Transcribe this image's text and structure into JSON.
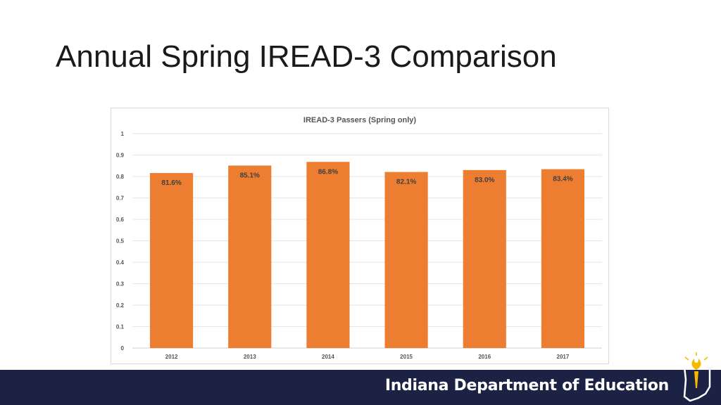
{
  "slide": {
    "title": "Annual Spring IREAD-3 Comparison"
  },
  "footer": {
    "organization": "Indiana Department of Education"
  },
  "colors": {
    "bar": "#ed7d31",
    "footer_background": "#1b2244",
    "logo_gold": "#f2b900"
  },
  "icons": {
    "logo": "indiana-state-torch-logo"
  },
  "chart_data": {
    "type": "bar",
    "title": "IREAD-3 Passers (Spring only)",
    "xlabel": "",
    "ylabel": "",
    "categories": [
      "2012",
      "2013",
      "2014",
      "2015",
      "2016",
      "2017"
    ],
    "values": [
      0.816,
      0.851,
      0.868,
      0.821,
      0.83,
      0.834
    ],
    "data_labels": [
      "81.6%",
      "85.1%",
      "86.8%",
      "82.1%",
      "83.0%",
      "83.4%"
    ],
    "ylim": [
      0,
      1
    ],
    "yticks": [
      "0",
      "0.1",
      "0.2",
      "0.3",
      "0.4",
      "0.5",
      "0.6",
      "0.7",
      "0.8",
      "0.9",
      "1"
    ],
    "ytick_values": [
      0,
      0.1,
      0.2,
      0.3,
      0.4,
      0.5,
      0.6,
      0.7,
      0.8,
      0.9,
      1
    ],
    "grid": true,
    "legend": "none"
  }
}
